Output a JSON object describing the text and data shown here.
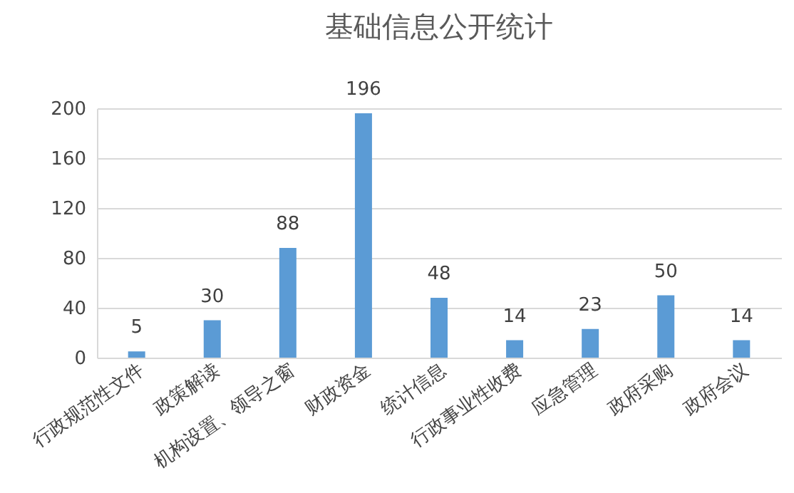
{
  "chart_data": {
    "type": "bar",
    "title": "基础信息公开统计",
    "categories": [
      "行政规范性文件",
      "政策解读",
      "机构设置、领导之窗",
      "财政资金",
      "统计信息",
      "行政事业性收费",
      "应急管理",
      "政府采购",
      "政府会议"
    ],
    "values": [
      5,
      30,
      88,
      196,
      48,
      14,
      23,
      50,
      14
    ],
    "color": "#5b9bd5",
    "ylim": [
      0,
      200
    ],
    "yticks": [
      0,
      40,
      80,
      120,
      160,
      200
    ],
    "grid": "y",
    "data_labels": true
  }
}
